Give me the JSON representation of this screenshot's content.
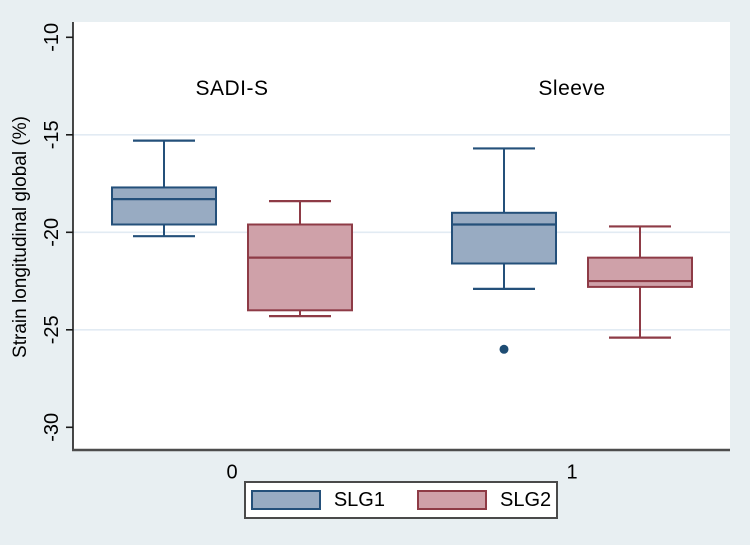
{
  "figure": {
    "background": "#e8eff2",
    "plot_background": "#ffffff"
  },
  "chart_data": {
    "type": "boxplot",
    "title": "",
    "ylabel": "Strain longitudinal global (%)",
    "xlabel": "",
    "ylim": [
      -31.2,
      -9.2
    ],
    "yticks": [
      -10,
      -15,
      -20,
      -25,
      -30
    ],
    "grid_ticks": [
      -15,
      -20,
      -25
    ],
    "grid_color": "#e2ebf3",
    "axis_color": "#1a1a1a",
    "bottom_axis_color": "#4d4d4d",
    "outlier_color": "#1e4c73",
    "groups": [
      {
        "label": "0",
        "annotation": "SADI-S"
      },
      {
        "label": "1",
        "annotation": "Sleeve"
      }
    ],
    "series": [
      {
        "name": "SLG1",
        "fill": "#98abc2",
        "stroke": "#24507a",
        "boxes": [
          {
            "group": "0",
            "whisker_low": -20.2,
            "q1": -19.6,
            "median": -18.3,
            "q3": -17.7,
            "whisker_high": -15.3,
            "outliers": []
          },
          {
            "group": "1",
            "whisker_low": -22.9,
            "q1": -21.6,
            "median": -19.6,
            "q3": -19.0,
            "whisker_high": -15.7,
            "outliers": [
              -26.0
            ]
          }
        ]
      },
      {
        "name": "SLG2",
        "fill": "#cfa1a9",
        "stroke": "#8e3b46",
        "boxes": [
          {
            "group": "0",
            "whisker_low": -24.3,
            "q1": -24.0,
            "median": -21.3,
            "q3": -19.6,
            "whisker_high": -18.4,
            "outliers": []
          },
          {
            "group": "1",
            "whisker_low": -25.4,
            "q1": -22.8,
            "median": -22.5,
            "q3": -21.3,
            "whisker_high": -19.7,
            "outliers": []
          }
        ]
      }
    ],
    "legend": {
      "position": "bottom",
      "entries": [
        "SLG1",
        "SLG2"
      ]
    }
  }
}
